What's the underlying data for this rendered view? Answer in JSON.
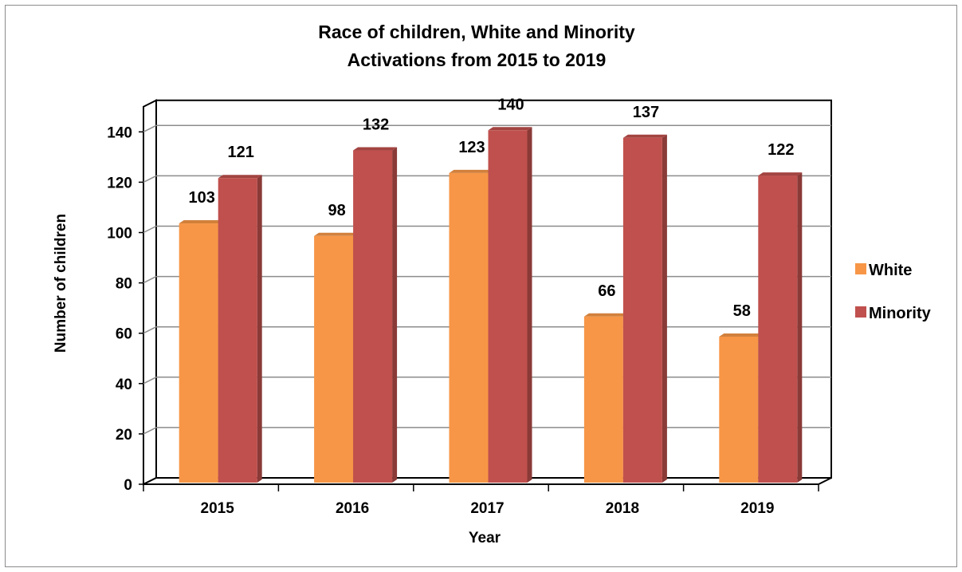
{
  "chart_data": {
    "type": "bar",
    "title": [
      "Race of children, White and Minority",
      "Activations from 2015 to 2019"
    ],
    "xlabel": "Year",
    "ylabel": "Number of children",
    "categories": [
      "2015",
      "2016",
      "2017",
      "2018",
      "2019"
    ],
    "series": [
      {
        "name": "White",
        "values": [
          103,
          98,
          123,
          66,
          58
        ],
        "color": "#F79646"
      },
      {
        "name": "Minority",
        "values": [
          121,
          132,
          140,
          137,
          122
        ],
        "color": "#C0504D"
      }
    ],
    "ylim": [
      0,
      140
    ],
    "yticks": [
      0,
      20,
      40,
      60,
      80,
      100,
      120,
      140
    ],
    "grid": true,
    "legend_position": "right",
    "data_labels": true,
    "style": "3d-clustered-column"
  }
}
